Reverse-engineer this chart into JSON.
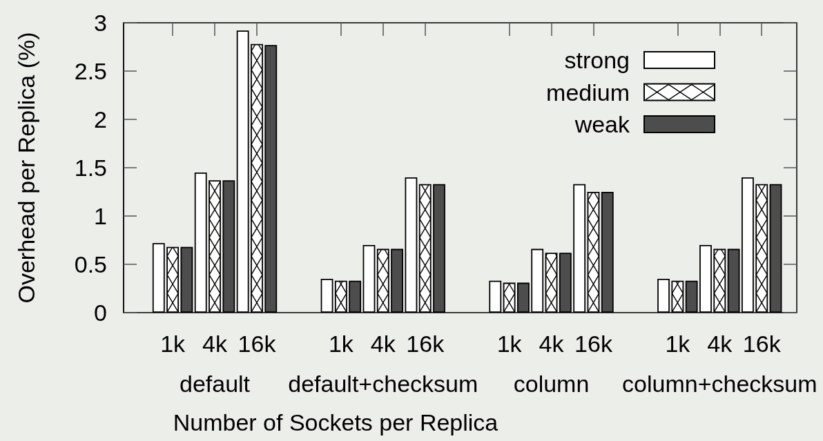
{
  "chart_data": {
    "type": "bar",
    "xlabel": "Number of Sockets per Replica",
    "ylabel": "Overhead per Replica (%)",
    "categories": [
      "1k",
      "4k",
      "16k",
      null,
      "1k",
      "4k",
      "16k",
      null,
      "1k",
      "4k",
      "16k",
      null,
      "1k",
      "4k",
      "16k"
    ],
    "series": [
      {
        "name": "strong",
        "color": "#ffffff",
        "values": [
          0.72,
          1.45,
          2.92,
          null,
          0.35,
          0.7,
          1.4,
          null,
          0.33,
          0.66,
          1.33,
          null,
          0.35,
          0.7,
          1.4
        ]
      },
      {
        "name": "medium",
        "color": "#ffffff",
        "values": [
          0.68,
          1.37,
          2.78,
          null,
          0.33,
          0.66,
          1.33,
          null,
          0.31,
          0.62,
          1.25,
          null,
          0.33,
          0.66,
          1.33
        ]
      },
      {
        "name": "weak",
        "color": "#4d4d4d",
        "values": [
          0.68,
          1.37,
          2.77,
          null,
          0.33,
          0.66,
          1.33,
          null,
          0.31,
          0.62,
          1.25,
          null,
          0.33,
          0.66,
          1.33
        ]
      }
    ],
    "ylim": [
      0,
      3
    ],
    "yticks": [
      0,
      0.5,
      1,
      1.5,
      2,
      2.5,
      3
    ],
    "legend": "top right",
    "annotations": [
      "default",
      "default+checksum",
      "column",
      "column+checksum"
    ]
  }
}
